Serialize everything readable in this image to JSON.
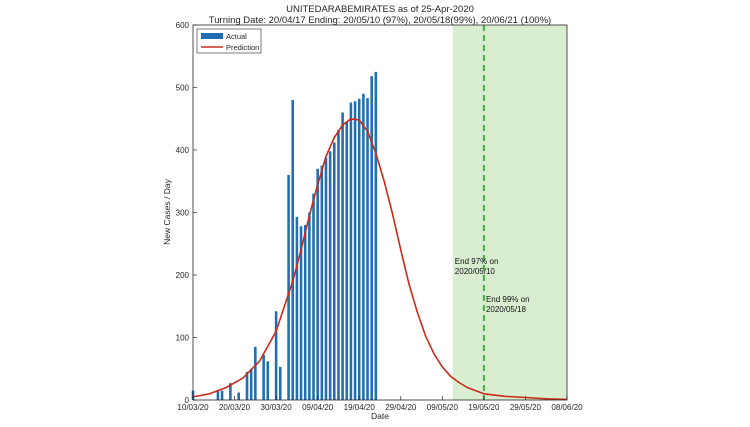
{
  "chart_data": {
    "type": "bar",
    "title": "UNITEDARABEMIRATES as of 25-Apr-2020",
    "subtitle": "Turning Date: 20/04/17   Ending: 20/05/10 (97%), 20/05/18(99%), 20/06/21 (100%)",
    "xlabel": "Date",
    "ylabel": "New Cases / Day",
    "ylim": [
      0,
      600
    ],
    "yticks": [
      "0",
      "100",
      "200",
      "300",
      "400",
      "500",
      "600"
    ],
    "xlim_day": [
      0,
      90
    ],
    "xticks": [
      {
        "day": 0,
        "label": "10/03/20"
      },
      {
        "day": 10,
        "label": "20/03/20"
      },
      {
        "day": 20,
        "label": "30/03/20"
      },
      {
        "day": 30,
        "label": "09/04/20"
      },
      {
        "day": 40,
        "label": "19/04/20"
      },
      {
        "day": 50,
        "label": "29/04/20"
      },
      {
        "day": 60,
        "label": "09/05/20"
      },
      {
        "day": 70,
        "label": "19/05/20"
      },
      {
        "day": 80,
        "label": "29/05/20"
      },
      {
        "day": 90,
        "label": "08/06/20"
      }
    ],
    "actual": {
      "name": "Actual",
      "color": "#1f6fb2",
      "days": [
        0,
        6,
        7,
        9,
        11,
        13,
        14,
        15,
        17,
        18,
        20,
        21,
        23,
        24,
        25,
        26,
        27,
        28,
        29,
        30,
        31,
        32,
        33,
        34,
        35,
        36,
        37,
        38,
        39,
        40,
        41,
        42,
        43,
        44,
        45,
        46
      ],
      "values": [
        15,
        15,
        15,
        27,
        12,
        45,
        50,
        85,
        72,
        62,
        142,
        53,
        360,
        480,
        293,
        278,
        280,
        300,
        330,
        370,
        375,
        388,
        398,
        412,
        432,
        460,
        445,
        476,
        478,
        482,
        490,
        483,
        518,
        525,
        0,
        0
      ]
    },
    "prediction": {
      "name": "Prediction",
      "color": "#cc2a1a",
      "days": [
        0,
        4,
        8,
        12,
        16,
        20,
        24,
        26,
        28,
        30,
        32,
        34,
        36,
        38,
        40,
        42,
        44,
        46,
        48,
        50,
        52,
        54,
        56,
        58,
        60,
        62,
        64,
        66,
        68,
        70,
        75,
        80,
        85,
        90
      ],
      "values": [
        5,
        10,
        20,
        35,
        62,
        110,
        190,
        240,
        295,
        345,
        390,
        420,
        440,
        450,
        448,
        430,
        395,
        350,
        298,
        240,
        185,
        140,
        102,
        74,
        53,
        38,
        28,
        20,
        15,
        10,
        6,
        4,
        2,
        1
      ]
    },
    "shaded_region": {
      "from_day": 62.5,
      "to_day": 90,
      "color": "#d9edd0"
    },
    "end_line": {
      "day": 70,
      "color": "#3cb53c"
    },
    "annotations": [
      {
        "day": 63,
        "value": 218,
        "lines": [
          "End 97% on",
          "2020/05/10"
        ]
      },
      {
        "day": 70.5,
        "value": 157,
        "lines": [
          "End 99% on",
          "2020/05/18"
        ]
      }
    ],
    "legend": {
      "position": "top-left",
      "entries": [
        "Actual",
        "Prediction"
      ]
    }
  }
}
